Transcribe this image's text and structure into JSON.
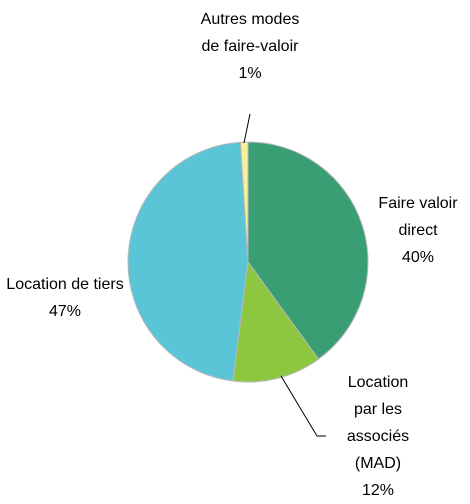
{
  "chart_data": {
    "type": "pie",
    "categories": [
      "Faire valoir direct",
      "Location par les associés (MAD)",
      "Location de tiers",
      "Autres modes de faire-valoir"
    ],
    "values": [
      40,
      12,
      47,
      1
    ],
    "value_labels": [
      "40%",
      "12%",
      "47%",
      "1%"
    ],
    "colors": [
      "#3a9e74",
      "#8dc63f",
      "#5bc5d8",
      "#f7f29a"
    ]
  }
}
